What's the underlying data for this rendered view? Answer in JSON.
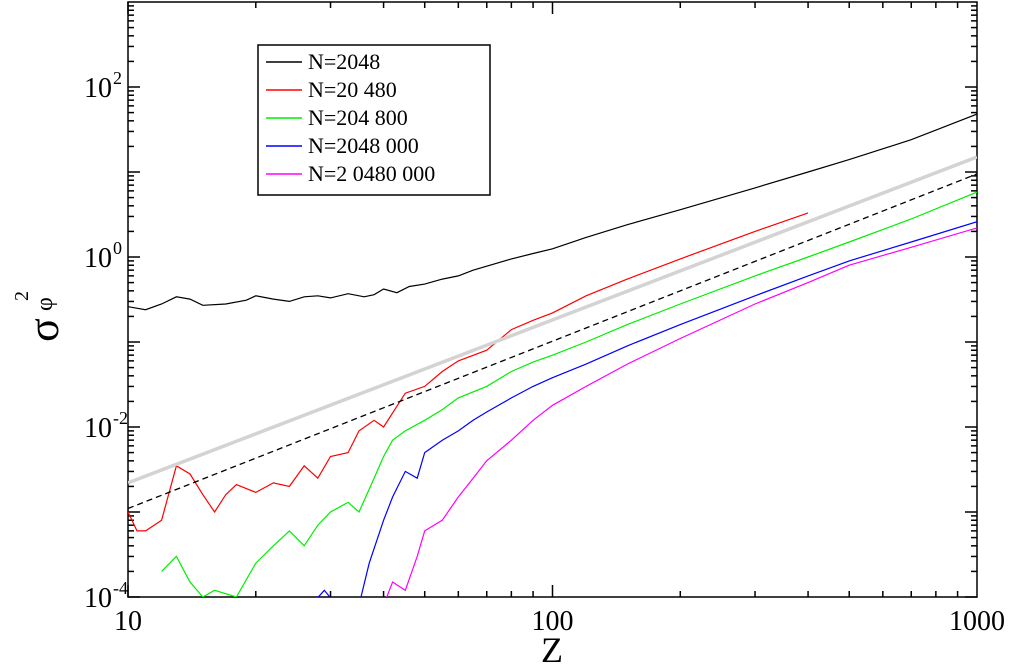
{
  "chart_data": {
    "type": "line",
    "xscale": "log",
    "yscale": "log",
    "xlim": [
      10,
      1000
    ],
    "ylim": [
      0.0001,
      1000
    ],
    "xlabel": "Z",
    "ylabel": {
      "symbol": "σ",
      "subscript": "φ",
      "superscript": "2"
    },
    "x_ticks": [
      {
        "value": 10,
        "label": "10"
      },
      {
        "value": 100,
        "label": "100"
      },
      {
        "value": 1000,
        "label": "1000"
      }
    ],
    "y_ticks": [
      {
        "value": 0.0001,
        "base": "10",
        "exp": "-4"
      },
      {
        "value": 0.01,
        "base": "10",
        "exp": "-2"
      },
      {
        "value": 1,
        "base": "10",
        "exp": "0"
      },
      {
        "value": 100,
        "base": "10",
        "exp": "2"
      }
    ],
    "legend_position": "top-left",
    "series": [
      {
        "name": "N=2048",
        "color": "#000000",
        "points": [
          [
            10,
            0.26
          ],
          [
            11,
            0.24
          ],
          [
            12,
            0.28
          ],
          [
            13,
            0.34
          ],
          [
            14,
            0.32
          ],
          [
            15,
            0.27
          ],
          [
            17,
            0.28
          ],
          [
            19,
            0.31
          ],
          [
            20,
            0.35
          ],
          [
            22,
            0.32
          ],
          [
            24,
            0.3
          ],
          [
            26,
            0.34
          ],
          [
            28,
            0.35
          ],
          [
            30,
            0.33
          ],
          [
            33,
            0.37
          ],
          [
            36,
            0.34
          ],
          [
            38,
            0.36
          ],
          [
            40,
            0.42
          ],
          [
            43,
            0.38
          ],
          [
            46,
            0.45
          ],
          [
            50,
            0.48
          ],
          [
            55,
            0.55
          ],
          [
            60,
            0.6
          ],
          [
            65,
            0.7
          ],
          [
            70,
            0.78
          ],
          [
            80,
            0.95
          ],
          [
            90,
            1.1
          ],
          [
            100,
            1.25
          ],
          [
            120,
            1.7
          ],
          [
            150,
            2.4
          ],
          [
            200,
            3.6
          ],
          [
            300,
            6.5
          ],
          [
            400,
            10
          ],
          [
            500,
            14
          ],
          [
            700,
            24
          ],
          [
            1000,
            48
          ]
        ]
      },
      {
        "name": "N=20 480",
        "color": "#ff0000",
        "points": [
          [
            10,
            0.001
          ],
          [
            10.5,
            0.0006
          ],
          [
            11,
            0.0006
          ],
          [
            12,
            0.0008
          ],
          [
            13,
            0.0035
          ],
          [
            14,
            0.0028
          ],
          [
            15,
            0.0016
          ],
          [
            16,
            0.001
          ],
          [
            17,
            0.0016
          ],
          [
            18,
            0.0021
          ],
          [
            20,
            0.0017
          ],
          [
            22,
            0.0022
          ],
          [
            24,
            0.002
          ],
          [
            26,
            0.0035
          ],
          [
            28,
            0.0025
          ],
          [
            30,
            0.0045
          ],
          [
            33,
            0.005
          ],
          [
            35,
            0.009
          ],
          [
            38,
            0.012
          ],
          [
            40,
            0.01
          ],
          [
            45,
            0.025
          ],
          [
            50,
            0.03
          ],
          [
            55,
            0.045
          ],
          [
            60,
            0.06
          ],
          [
            70,
            0.08
          ],
          [
            80,
            0.14
          ],
          [
            90,
            0.18
          ],
          [
            100,
            0.22
          ],
          [
            120,
            0.35
          ],
          [
            150,
            0.55
          ],
          [
            200,
            0.95
          ],
          [
            300,
            2.0
          ],
          [
            400,
            3.3
          ]
        ]
      },
      {
        "name": "N=204 800",
        "color": "#00ee00",
        "points": [
          [
            12,
            0.0002
          ],
          [
            13,
            0.0003
          ],
          [
            14,
            0.00015
          ],
          [
            15,
            0.0001
          ],
          [
            16,
            0.00012
          ],
          [
            18,
            0.0001
          ],
          [
            20,
            0.00025
          ],
          [
            22,
            0.0004
          ],
          [
            24,
            0.0006
          ],
          [
            26,
            0.0004
          ],
          [
            28,
            0.0007
          ],
          [
            30,
            0.001
          ],
          [
            33,
            0.0013
          ],
          [
            35,
            0.001
          ],
          [
            38,
            0.0025
          ],
          [
            40,
            0.0045
          ],
          [
            42,
            0.007
          ],
          [
            45,
            0.009
          ],
          [
            50,
            0.012
          ],
          [
            55,
            0.016
          ],
          [
            60,
            0.022
          ],
          [
            70,
            0.03
          ],
          [
            80,
            0.045
          ],
          [
            90,
            0.058
          ],
          [
            100,
            0.07
          ],
          [
            120,
            0.1
          ],
          [
            150,
            0.16
          ],
          [
            200,
            0.28
          ],
          [
            300,
            0.6
          ],
          [
            400,
            1.0
          ],
          [
            500,
            1.5
          ],
          [
            700,
            2.8
          ],
          [
            1000,
            5.8
          ]
        ]
      },
      {
        "name": "N=2048 000",
        "color": "#0000ff",
        "points": [
          [
            27,
            8e-05
          ],
          [
            29,
            0.00012
          ],
          [
            31,
            8e-05
          ],
          [
            35,
            8e-05
          ],
          [
            37,
            0.00025
          ],
          [
            40,
            0.0008
          ],
          [
            42,
            0.0015
          ],
          [
            45,
            0.003
          ],
          [
            48,
            0.0025
          ],
          [
            50,
            0.005
          ],
          [
            55,
            0.007
          ],
          [
            60,
            0.009
          ],
          [
            65,
            0.012
          ],
          [
            70,
            0.015
          ],
          [
            80,
            0.022
          ],
          [
            90,
            0.03
          ],
          [
            100,
            0.038
          ],
          [
            120,
            0.055
          ],
          [
            150,
            0.09
          ],
          [
            200,
            0.16
          ],
          [
            300,
            0.35
          ],
          [
            400,
            0.6
          ],
          [
            500,
            0.9
          ],
          [
            700,
            1.5
          ],
          [
            1000,
            2.6
          ]
        ]
      },
      {
        "name": "N=2 0480 000",
        "color": "#ff00ff",
        "points": [
          [
            40,
            8e-05
          ],
          [
            42,
            0.00015
          ],
          [
            45,
            0.00012
          ],
          [
            48,
            0.0003
          ],
          [
            50,
            0.0006
          ],
          [
            55,
            0.0008
          ],
          [
            60,
            0.0015
          ],
          [
            65,
            0.0025
          ],
          [
            70,
            0.004
          ],
          [
            80,
            0.007
          ],
          [
            90,
            0.012
          ],
          [
            100,
            0.018
          ],
          [
            120,
            0.03
          ],
          [
            150,
            0.055
          ],
          [
            200,
            0.11
          ],
          [
            300,
            0.28
          ],
          [
            400,
            0.5
          ],
          [
            500,
            0.8
          ],
          [
            700,
            1.3
          ],
          [
            1000,
            2.2
          ]
        ]
      },
      {
        "name": "",
        "color": "#d3d3d3",
        "points": [
          [
            10,
            0.0022
          ],
          [
            1000,
            15
          ]
        ]
      },
      {
        "name": "",
        "color": "#000000",
        "points": [
          [
            10,
            0.0011
          ],
          [
            1000,
            9.5
          ]
        ]
      }
    ]
  }
}
